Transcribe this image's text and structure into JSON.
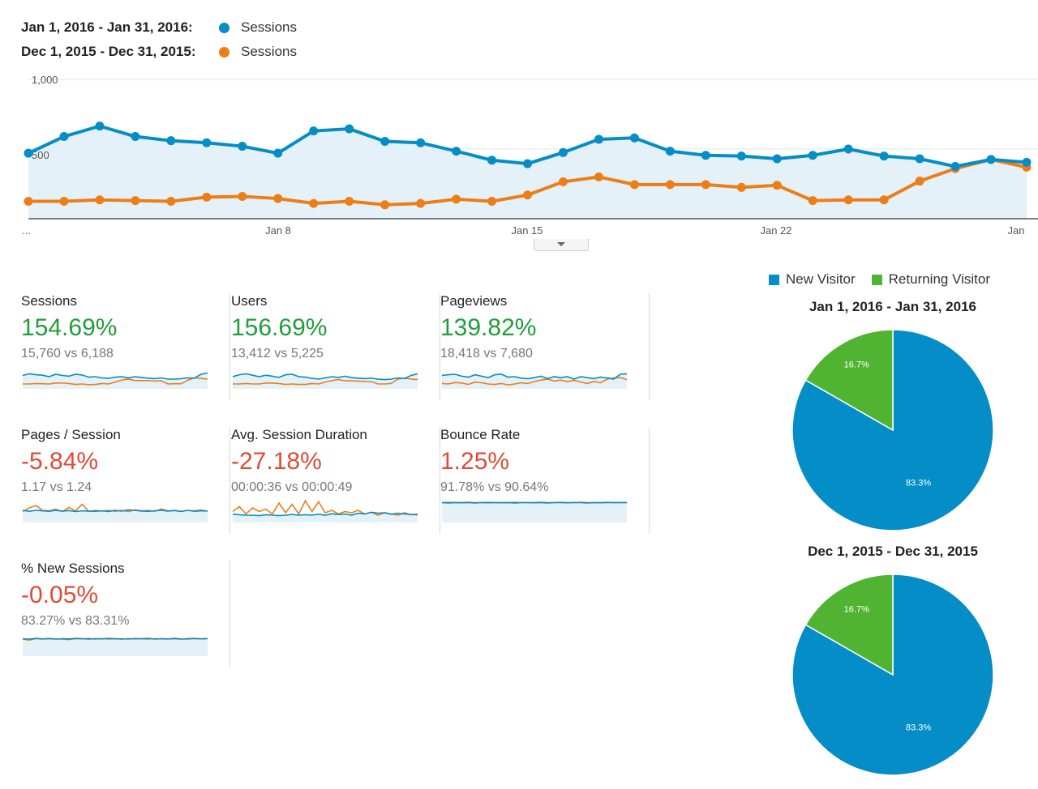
{
  "header": {
    "current_range": "Jan 1, 2016 - Jan 31, 2016:",
    "previous_range": "Dec 1, 2015 - Dec 31, 2015:",
    "current_series": "Sessions",
    "previous_series": "Sessions"
  },
  "colors": {
    "current": "#058dc7",
    "previous": "#ed7e17",
    "new_visitor": "#058dc7",
    "returning_visitor": "#50b432",
    "positive": "#1e9f3a",
    "negative": "#df4b37"
  },
  "chart_data": [
    {
      "type": "line",
      "ylim": [
        0,
        1000
      ],
      "y_ticks": [
        "1,000",
        "500"
      ],
      "x_tick_labels": [
        "...",
        "Jan 8",
        "Jan 15",
        "Jan 22",
        "Jan"
      ],
      "grid": true,
      "series": [
        {
          "name": "Sessions",
          "values": [
            470,
            590,
            665,
            590,
            560,
            545,
            520,
            470,
            630,
            645,
            555,
            545,
            485,
            420,
            395,
            475,
            570,
            580,
            485,
            455,
            450,
            430,
            455,
            500,
            450,
            430,
            375,
            425,
            405
          ]
        },
        {
          "name": "Sessions",
          "values": [
            125,
            125,
            135,
            130,
            125,
            155,
            160,
            145,
            110,
            125,
            100,
            110,
            140,
            125,
            170,
            265,
            300,
            245,
            245,
            245,
            225,
            240,
            130,
            135,
            135,
            270,
            360,
            425,
            370
          ]
        }
      ]
    },
    {
      "type": "pie",
      "title": "Jan 1, 2016 - Jan 31, 2016",
      "categories": [
        "New Visitor",
        "Returning Visitor"
      ],
      "values": [
        83.3,
        16.7
      ],
      "labels": [
        "83.3%",
        "16.7%"
      ]
    },
    {
      "type": "pie",
      "title": "Dec 1, 2015 - Dec 31, 2015",
      "categories": [
        "New Visitor",
        "Returning Visitor"
      ],
      "values": [
        83.3,
        16.7
      ],
      "labels": [
        "83.3%",
        "16.7%"
      ]
    }
  ],
  "metrics": [
    {
      "label": "Sessions",
      "change": "154.69%",
      "trend": "positive",
      "compare": "15,760 vs 6,188",
      "spark_current": [
        0.55,
        0.62,
        0.58,
        0.56,
        0.5,
        0.6,
        0.55,
        0.52,
        0.6,
        0.57,
        0.48,
        0.5,
        0.45,
        0.43,
        0.48,
        0.5,
        0.45,
        0.5,
        0.47,
        0.44,
        0.42,
        0.45,
        0.4,
        0.4,
        0.42,
        0.45,
        0.44,
        0.6,
        0.65
      ],
      "spark_previous": [
        0.2,
        0.2,
        0.22,
        0.21,
        0.2,
        0.24,
        0.24,
        0.22,
        0.18,
        0.2,
        0.17,
        0.18,
        0.22,
        0.2,
        0.28,
        0.36,
        0.4,
        0.34,
        0.34,
        0.34,
        0.32,
        0.33,
        0.2,
        0.21,
        0.21,
        0.36,
        0.45,
        0.43,
        0.4
      ]
    },
    {
      "label": "Users",
      "change": "156.69%",
      "trend": "positive",
      "compare": "13,412 vs 5,225",
      "spark_current": [
        0.5,
        0.58,
        0.62,
        0.56,
        0.5,
        0.56,
        0.52,
        0.47,
        0.58,
        0.6,
        0.5,
        0.48,
        0.43,
        0.4,
        0.45,
        0.5,
        0.47,
        0.52,
        0.46,
        0.44,
        0.42,
        0.44,
        0.4,
        0.38,
        0.4,
        0.45,
        0.42,
        0.55,
        0.62
      ],
      "spark_previous": [
        0.2,
        0.2,
        0.22,
        0.2,
        0.2,
        0.24,
        0.24,
        0.22,
        0.18,
        0.2,
        0.18,
        0.18,
        0.22,
        0.2,
        0.28,
        0.34,
        0.38,
        0.33,
        0.33,
        0.32,
        0.3,
        0.3,
        0.2,
        0.2,
        0.22,
        0.4,
        0.44,
        0.4,
        0.38
      ]
    },
    {
      "label": "Pageviews",
      "change": "139.82%",
      "trend": "positive",
      "compare": "18,418 vs 7,680",
      "spark_current": [
        0.55,
        0.58,
        0.6,
        0.52,
        0.48,
        0.58,
        0.52,
        0.46,
        0.58,
        0.6,
        0.48,
        0.5,
        0.44,
        0.42,
        0.46,
        0.52,
        0.42,
        0.5,
        0.46,
        0.5,
        0.4,
        0.5,
        0.46,
        0.42,
        0.48,
        0.45,
        0.4,
        0.6,
        0.62
      ],
      "spark_previous": [
        0.22,
        0.2,
        0.26,
        0.24,
        0.18,
        0.28,
        0.25,
        0.2,
        0.18,
        0.22,
        0.16,
        0.2,
        0.25,
        0.22,
        0.3,
        0.36,
        0.4,
        0.32,
        0.36,
        0.3,
        0.35,
        0.28,
        0.22,
        0.3,
        0.25,
        0.4,
        0.45,
        0.46,
        0.38
      ]
    },
    {
      "label": "Pages / Session",
      "change": "-5.84%",
      "trend": "negative",
      "compare": "1.17 vs 1.24",
      "spark_current": [
        0.5,
        0.46,
        0.5,
        0.48,
        0.46,
        0.5,
        0.47,
        0.49,
        0.45,
        0.48,
        0.47,
        0.46,
        0.48,
        0.45,
        0.5,
        0.47,
        0.52,
        0.5,
        0.47,
        0.46,
        0.48,
        0.5,
        0.47,
        0.49,
        0.45,
        0.5,
        0.46,
        0.48,
        0.47
      ],
      "spark_previous": [
        0.45,
        0.6,
        0.7,
        0.5,
        0.48,
        0.55,
        0.45,
        0.62,
        0.48,
        0.75,
        0.46,
        0.5,
        0.47,
        0.5,
        0.46,
        0.5,
        0.45,
        0.52,
        0.48,
        0.5,
        0.46,
        0.56,
        0.48,
        0.5,
        0.46,
        0.5,
        0.48,
        0.52,
        0.46
      ]
    },
    {
      "label": "Avg. Session Duration",
      "change": "-27.18%",
      "trend": "negative",
      "compare": "00:00:36 vs 00:00:49",
      "spark_current": [
        0.35,
        0.32,
        0.3,
        0.3,
        0.28,
        0.32,
        0.3,
        0.28,
        0.3,
        0.33,
        0.3,
        0.32,
        0.3,
        0.34,
        0.3,
        0.36,
        0.33,
        0.35,
        0.3,
        0.38,
        0.35,
        0.42,
        0.38,
        0.4,
        0.34,
        0.38,
        0.35,
        0.33,
        0.32
      ],
      "spark_previous": [
        0.45,
        0.65,
        0.35,
        0.6,
        0.45,
        0.55,
        0.35,
        0.8,
        0.4,
        0.75,
        0.35,
        0.9,
        0.45,
        0.85,
        0.4,
        0.5,
        0.35,
        0.45,
        0.4,
        0.5,
        0.35,
        0.42,
        0.3,
        0.4,
        0.35,
        0.3,
        0.4,
        0.32,
        0.35
      ]
    },
    {
      "label": "Bounce Rate",
      "change": "1.25%",
      "trend": "negative",
      "compare": "91.78% vs 90.64%",
      "spark_current": [
        0.82,
        0.8,
        0.82,
        0.81,
        0.82,
        0.8,
        0.82,
        0.81,
        0.82,
        0.81,
        0.82,
        0.8,
        0.82,
        0.82,
        0.81,
        0.82,
        0.8,
        0.82,
        0.82,
        0.81,
        0.82,
        0.82,
        0.8,
        0.82,
        0.81,
        0.82,
        0.82,
        0.82,
        0.82
      ],
      "spark_previous": [
        0.82,
        0.83,
        0.82,
        0.82,
        0.83,
        0.82,
        0.82,
        0.83,
        0.82,
        0.82,
        0.82,
        0.83,
        0.82,
        0.82,
        0.82,
        0.83,
        0.82,
        0.82,
        0.83,
        0.82,
        0.82,
        0.83,
        0.82,
        0.82,
        0.82,
        0.83,
        0.82,
        0.82,
        0.82
      ]
    },
    {
      "label": "% New Sessions",
      "change": "-0.05%",
      "trend": "negative",
      "compare": "83.27% vs 83.31%",
      "spark_current": [
        0.72,
        0.7,
        0.73,
        0.71,
        0.72,
        0.7,
        0.72,
        0.71,
        0.73,
        0.72,
        0.7,
        0.72,
        0.71,
        0.73,
        0.72,
        0.7,
        0.72,
        0.71,
        0.72,
        0.73,
        0.7,
        0.72,
        0.71,
        0.72,
        0.7,
        0.72,
        0.73,
        0.71,
        0.72
      ],
      "spark_previous": [
        0.7,
        0.66,
        0.72,
        0.7,
        0.73,
        0.71,
        0.7,
        0.68,
        0.72,
        0.71,
        0.73,
        0.7,
        0.72,
        0.7,
        0.71,
        0.72,
        0.7,
        0.73,
        0.71,
        0.7,
        0.72,
        0.71,
        0.7,
        0.74,
        0.71,
        0.7,
        0.72,
        0.71,
        0.73
      ]
    }
  ],
  "pie_legend": {
    "new_label": "New Visitor",
    "returning_label": "Returning Visitor"
  }
}
